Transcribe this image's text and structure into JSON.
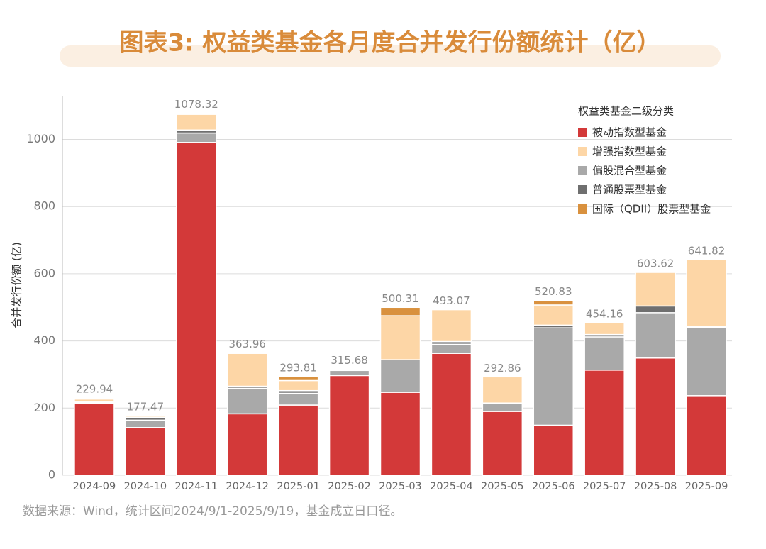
{
  "chart_data": {
    "type": "stacked_bar",
    "title": "图表3: 权益类基金各月度合并发行份额统计（亿）",
    "y_label": "合并发行份额 (亿)",
    "legend_title": "权益类基金二级分类",
    "source": "数据来源：Wind，统计区间2024/9/1-2025/9/19，基金成立日口径。",
    "categories": [
      "2024-09",
      "2024-10",
      "2024-11",
      "2024-12",
      "2025-01",
      "2025-02",
      "2025-03",
      "2025-04",
      "2025-05",
      "2025-06",
      "2025-07",
      "2025-08",
      "2025-09"
    ],
    "series": [
      {
        "name": "被动指数型基金",
        "color": "#d33939",
        "values": [
          213,
          142,
          991,
          183,
          209,
          297,
          247,
          363,
          190,
          149,
          313,
          349,
          237
        ]
      },
      {
        "name": "偏股混合型基金",
        "color": "#a9a9a9",
        "values": [
          2,
          22,
          28,
          76,
          35,
          15,
          97,
          27,
          24,
          290,
          99,
          135,
          203
        ]
      },
      {
        "name": "普通股票型基金",
        "color": "#6f6f6f",
        "values": [
          3,
          8,
          9,
          6,
          8,
          3,
          0,
          8,
          1,
          8,
          7,
          20,
          2
        ]
      },
      {
        "name": "增强指数型基金",
        "color": "#fdd6a6",
        "values": [
          9,
          4,
          47,
          98,
          30,
          0,
          131,
          95,
          78,
          60,
          35,
          100,
          200
        ]
      },
      {
        "name": "国际（QDII）股票型基金",
        "color": "#d9913e",
        "values": [
          3,
          1,
          3,
          1,
          12,
          1,
          25,
          0,
          0,
          14,
          0,
          0,
          0
        ]
      }
    ],
    "legend_order": [
      0,
      3,
      1,
      2,
      4
    ],
    "totals": [
      229.94,
      177.47,
      1078.32,
      363.96,
      293.81,
      315.68,
      500.31,
      493.07,
      292.86,
      520.83,
      454.16,
      603.62,
      641.82
    ],
    "ylim": [
      0,
      1130
    ],
    "yticks": [
      0,
      200,
      400,
      600,
      800,
      1000
    ],
    "grid": true
  }
}
